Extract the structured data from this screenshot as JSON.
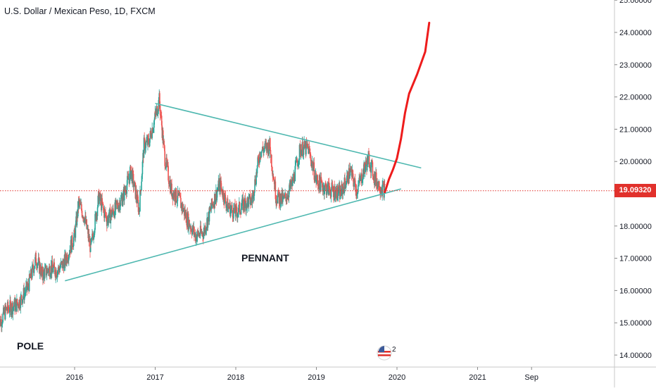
{
  "title": "U.S. Dollar / Mexican Peso, 1D, FXCM",
  "current_price_label": "19.09320",
  "annotations": {
    "pennant": "PENNANT",
    "pole": "POLE"
  },
  "badge_text": "2",
  "colors": {
    "candle_up": "#26a69a",
    "candle_down": "#ef5350",
    "trendline": "#4fb8b0",
    "projection": "#ee1c1c",
    "price_line": "#e1312c",
    "axis_text": "#131722"
  },
  "chart_data": {
    "type": "line",
    "title": "U.S. Dollar / Mexican Peso, 1D, FXCM",
    "xlabel": "",
    "ylabel": "",
    "x_ticks": [
      "2016",
      "2017",
      "2018",
      "2019",
      "2020",
      "2021",
      "Sep"
    ],
    "x_tick_dates": [
      2016.0,
      2017.0,
      2018.0,
      2019.0,
      2020.0,
      2021.0,
      2021.67
    ],
    "y_ticks": [
      "14.00000",
      "15.00000",
      "16.00000",
      "17.00000",
      "18.00000",
      "19.00000",
      "20.00000",
      "21.00000",
      "22.00000",
      "23.00000",
      "24.00000",
      "25.00000"
    ],
    "ylim": [
      13.75,
      25.05
    ],
    "xlim": [
      2015.05,
      2022.38
    ],
    "grid": false,
    "current_price": 19.0932,
    "series": [
      {
        "type": "candlestick",
        "x": [
          2015.05,
          2015.15,
          2015.3,
          2015.42,
          2015.52,
          2015.6,
          2015.7,
          2015.78,
          2015.88,
          2016.0,
          2016.05,
          2016.12,
          2016.2,
          2016.3,
          2016.4,
          2016.5,
          2016.6,
          2016.7,
          2016.8,
          2016.86,
          2016.92,
          2017.0,
          2017.05,
          2017.12,
          2017.2,
          2017.3,
          2017.4,
          2017.5,
          2017.6,
          2017.7,
          2017.8,
          2017.9,
          2018.0,
          2018.1,
          2018.2,
          2018.3,
          2018.42,
          2018.5,
          2018.6,
          2018.7,
          2018.8,
          2018.9,
          2019.0,
          2019.1,
          2019.2,
          2019.3,
          2019.42,
          2019.5,
          2019.6,
          2019.65,
          2019.72,
          2019.8,
          2019.85
        ],
        "y": [
          14.9,
          15.4,
          15.6,
          16.1,
          17.0,
          16.5,
          16.7,
          16.6,
          16.9,
          17.7,
          18.7,
          18.3,
          17.3,
          18.9,
          18.2,
          18.5,
          18.9,
          19.7,
          18.5,
          20.5,
          20.6,
          21.4,
          21.9,
          20.1,
          19.1,
          18.8,
          18.2,
          17.7,
          17.8,
          18.6,
          19.3,
          18.6,
          18.4,
          18.7,
          18.8,
          20.3,
          20.5,
          18.9,
          18.8,
          19.3,
          20.4,
          20.4,
          19.4,
          19.2,
          19.1,
          19.0,
          19.7,
          19.1,
          19.8,
          20.1,
          19.5,
          19.2,
          19.1
        ]
      },
      {
        "name": "",
        "type": "trendline-upper",
        "x": [
          2017.0,
          2020.3
        ],
        "y": [
          21.8,
          19.8
        ]
      },
      {
        "name": "",
        "type": "trendline-lower",
        "x": [
          2015.88,
          2020.05
        ],
        "y": [
          16.3,
          19.15
        ]
      },
      {
        "name": "",
        "type": "projection",
        "x": [
          2019.85,
          2019.9,
          2019.95,
          2020.0,
          2020.05,
          2020.1,
          2020.15,
          2020.25,
          2020.35,
          2020.4
        ],
        "y": [
          19.05,
          19.45,
          19.75,
          20.1,
          20.7,
          21.5,
          22.1,
          22.7,
          23.4,
          24.3
        ]
      }
    ]
  }
}
